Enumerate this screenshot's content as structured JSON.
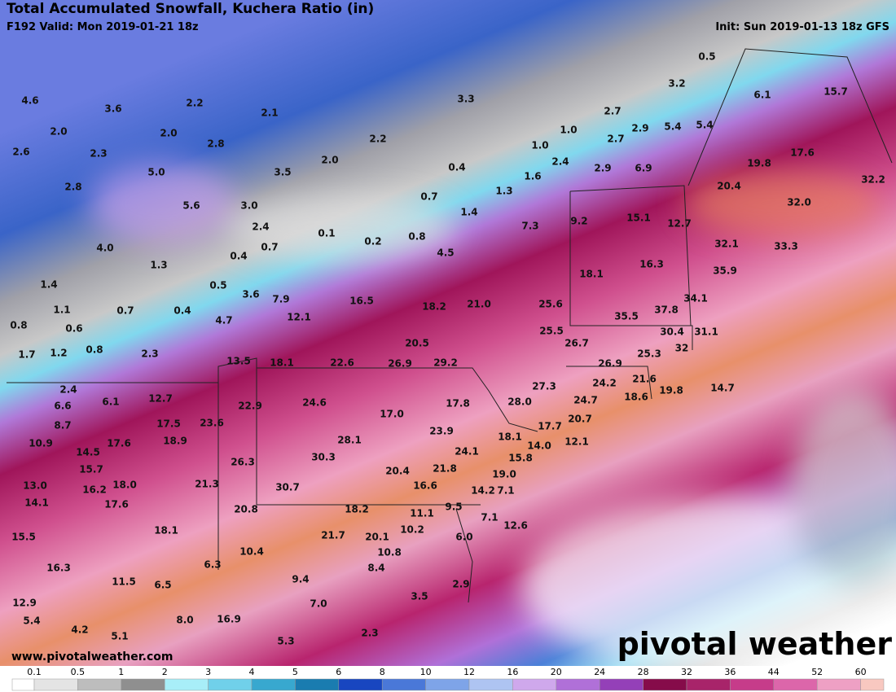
{
  "header": {
    "title": "Total Accumulated Snowfall, Kuchera Ratio (in)",
    "valid": "F192 Valid: Mon 2019-01-21 18z",
    "init": "Init: Sun 2019-01-13 18z GFS"
  },
  "labels": [
    "0.5",
    "3.2",
    "4.6",
    "3.6",
    "2.2",
    "2.1",
    "3.3",
    "6.1",
    "15.7",
    "2.0",
    "2.0",
    "2.8",
    "2.2",
    "2.7",
    "1.0",
    "2.9",
    "5.4",
    "5.4",
    "2.6",
    "2.3",
    "1.0",
    "2.7",
    "17.6",
    "5.0",
    "3.5",
    "2.0",
    "0.4",
    "2.4",
    "2.9",
    "6.9",
    "19.8",
    "2.8",
    "1.6",
    "20.4",
    "32.2",
    "5.6",
    "3.0",
    "0.7",
    "1.3",
    "32.0",
    "1.4",
    "7.3",
    "9.2",
    "15.1",
    "12.7",
    "2.4",
    "0.1",
    "0.2",
    "0.8",
    "4.0",
    "0.7",
    "0.4",
    "4.5",
    "32.1",
    "33.3",
    "1.3",
    "16.3",
    "35.9",
    "18.1",
    "1.4",
    "0.5",
    "3.6",
    "7.9",
    "16.5",
    "18.2",
    "21.0",
    "25.6",
    "35.5",
    "37.8",
    "34.1",
    "1.1",
    "0.7",
    "0.4",
    "4.7",
    "12.1",
    "0.8",
    "0.6",
    "20.5",
    "25.5",
    "30.4",
    "31.1",
    "26.7",
    "32",
    "1.7",
    "1.2",
    "0.8",
    "2.3",
    "13.5",
    "18.1",
    "22.6",
    "26.9",
    "29.2",
    "25.3",
    "26.9",
    "27.3",
    "24.2",
    "21.6",
    "19.8",
    "14.7",
    "2.4",
    "6.1",
    "12.7",
    "24.7",
    "18.6",
    "28.0",
    "6.6",
    "22.9",
    "24.6",
    "17.8",
    "17.5",
    "23.6",
    "17.0",
    "17.7",
    "8.7",
    "20.7",
    "18.9",
    "28.1",
    "23.9",
    "18.1",
    "12.1",
    "10.9",
    "17.6",
    "14.0",
    "14.5",
    "24.1",
    "26.3",
    "30.3",
    "15.8",
    "15.7",
    "20.4",
    "21.8",
    "19.0",
    "13.0",
    "18.0",
    "21.3",
    "16.2",
    "30.7",
    "16.6",
    "14.2",
    "7.1",
    "14.1",
    "17.6",
    "20.8",
    "18.2",
    "11.1",
    "9.5",
    "7.1",
    "15.5",
    "18.1",
    "21.7",
    "20.1",
    "10.2",
    "6.0",
    "12.6",
    "16.3",
    "10.4",
    "10.8",
    "6.3",
    "8.4",
    "11.5",
    "6.5",
    "9.4",
    "2.9",
    "12.9",
    "7.0",
    "3.5",
    "5.4",
    "8.0",
    "16.9",
    "4.2",
    "5.1",
    "2.3",
    "5.3"
  ],
  "legend": {
    "ticks": [
      0.1,
      0.5,
      1,
      2,
      3,
      4,
      5,
      6,
      8,
      10,
      12,
      16,
      20,
      24,
      28,
      32,
      36,
      44,
      52,
      60
    ],
    "colors": [
      "#ffffff",
      "#e4e4e4",
      "#bdbdbd",
      "#8f8f8f",
      "#a8eef8",
      "#70d0ea",
      "#38a8cf",
      "#1a7cb0",
      "#1846c0",
      "#4a78d8",
      "#7ea4e8",
      "#aec4f2",
      "#cfa8ec",
      "#b070d8",
      "#9440b8",
      "#860c4a",
      "#a8246a",
      "#c63c8a",
      "#dc66aa",
      "#eea0c4",
      "#f8c8c0"
    ]
  },
  "watermark": "www.pivotalweather.com",
  "logo": "pivotal weather"
}
